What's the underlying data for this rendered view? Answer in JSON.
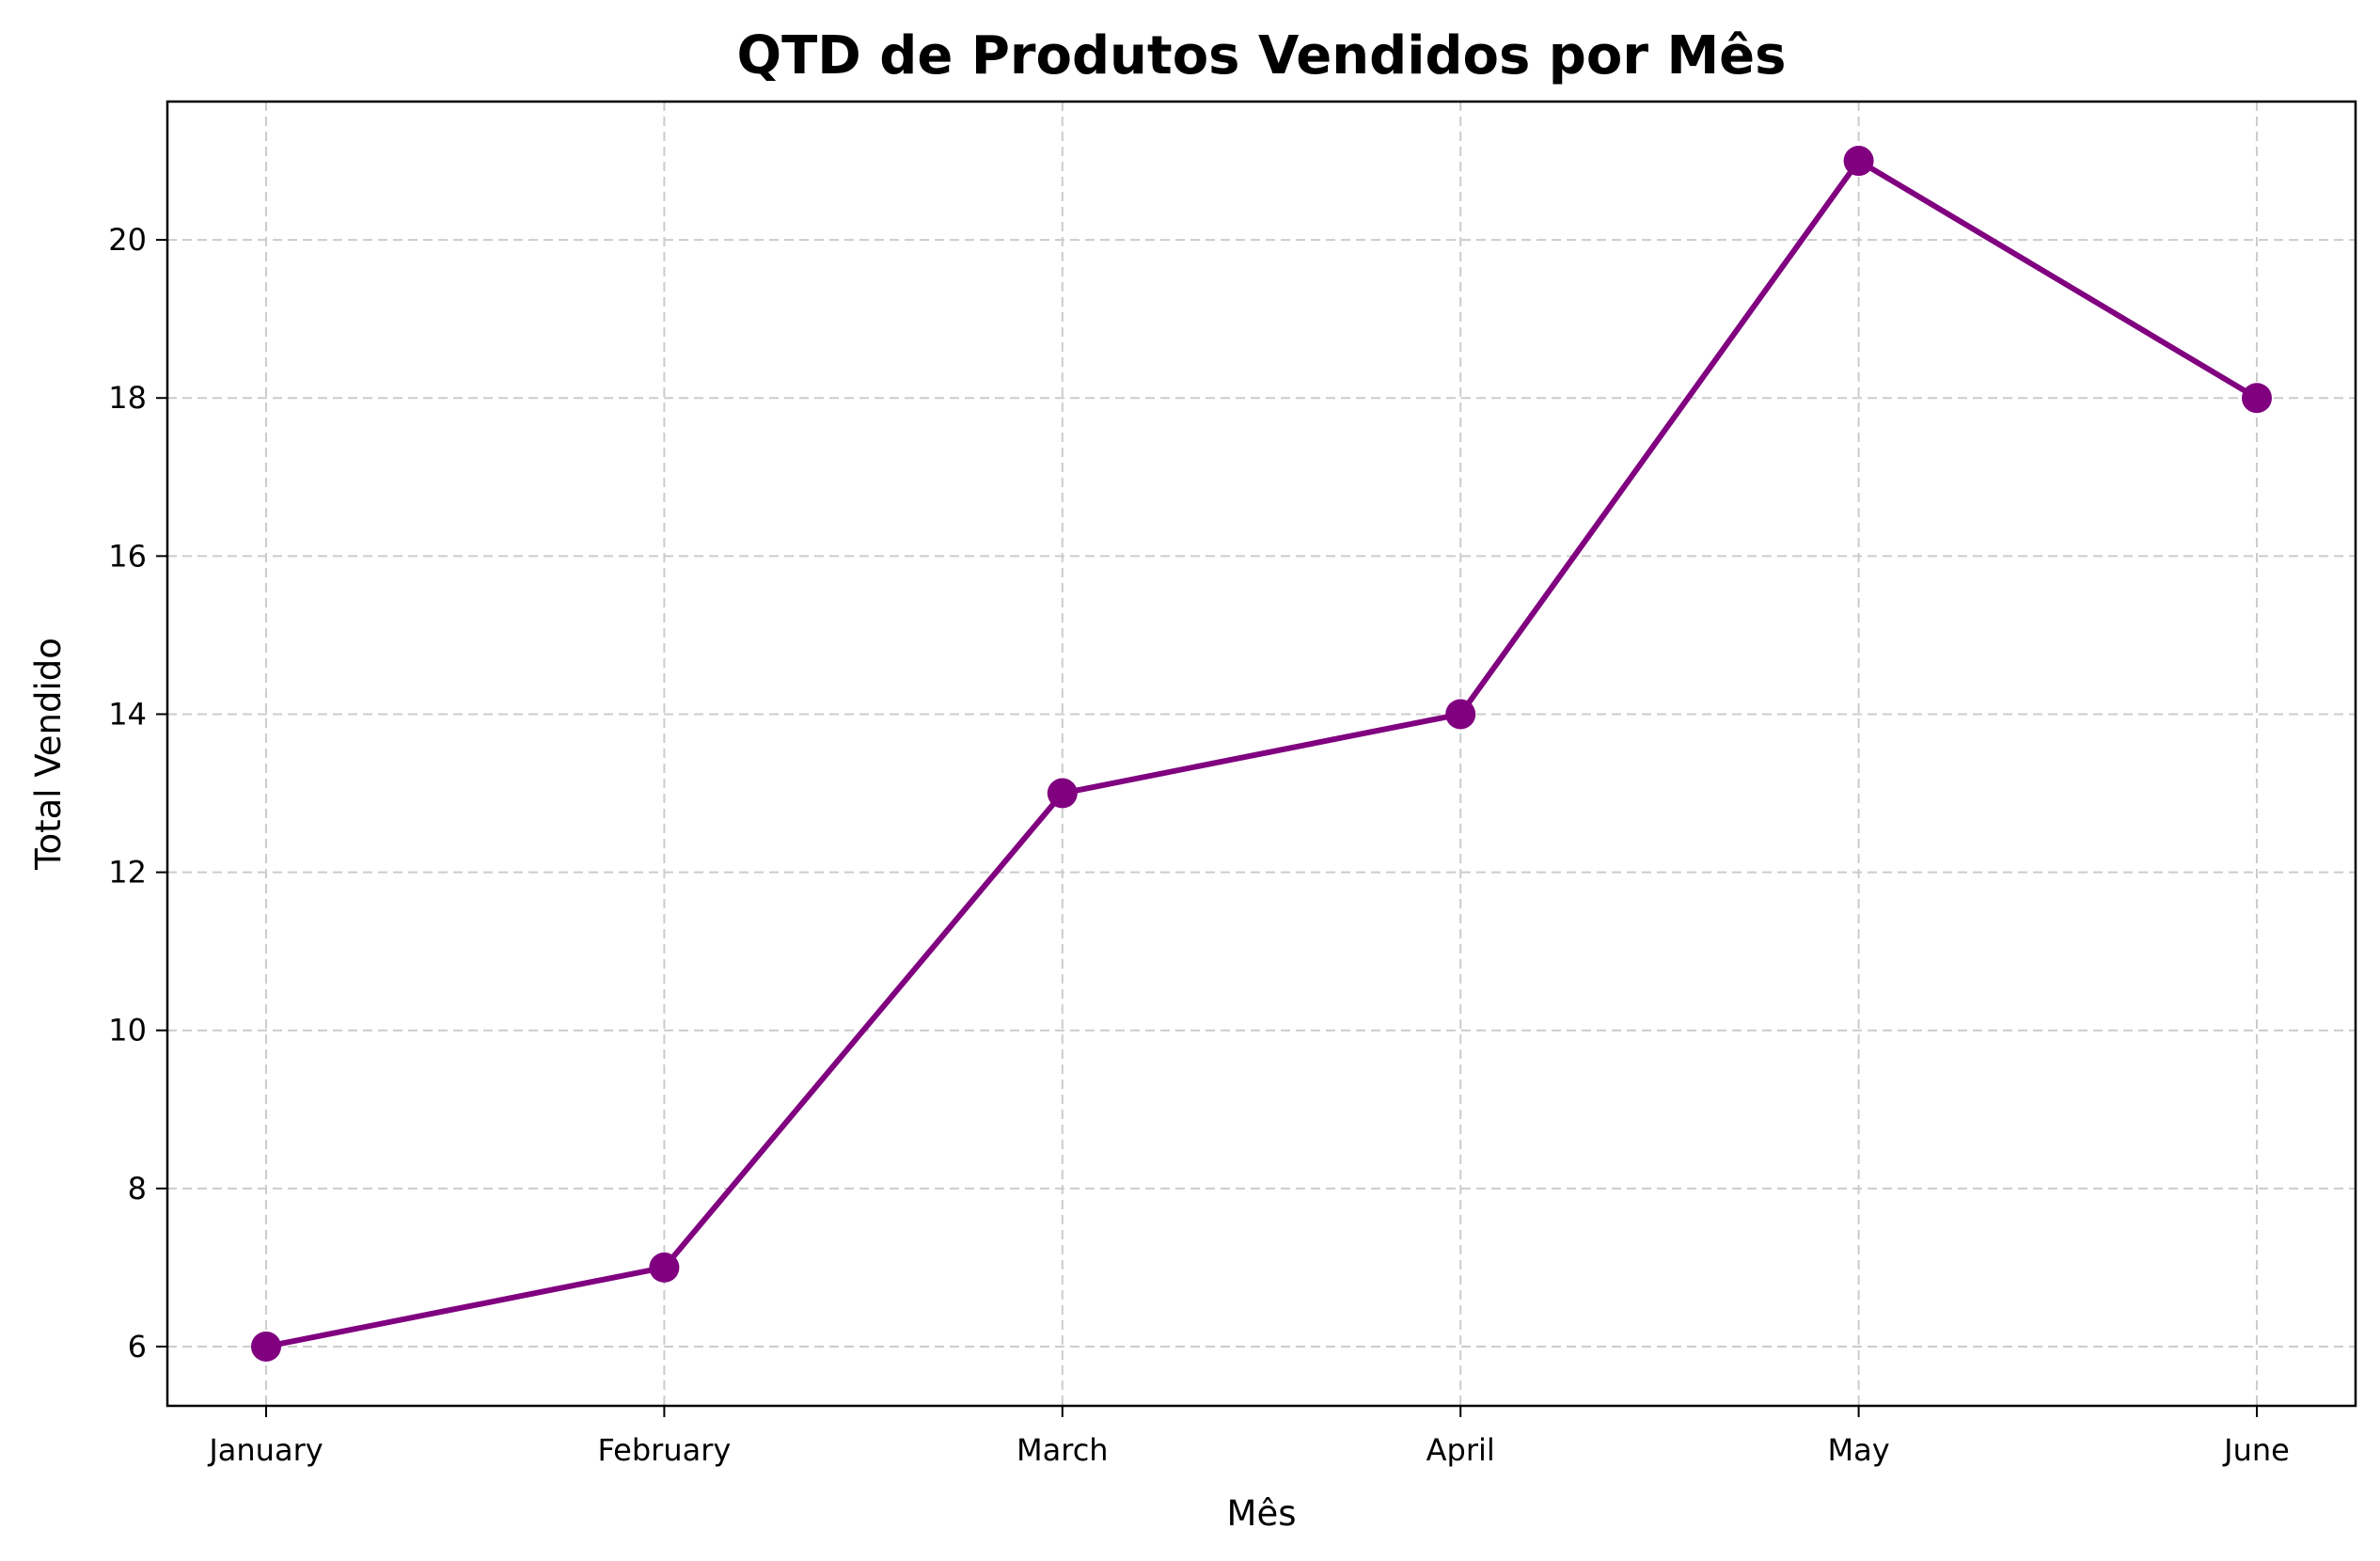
{
  "chart_data": {
    "type": "line",
    "title": "QTD de Produtos Vendidos por Mês",
    "xlabel": "Mês",
    "ylabel": "Total Vendido",
    "categories": [
      "January",
      "February",
      "March",
      "April",
      "May",
      "June"
    ],
    "series": [
      {
        "values": [
          6,
          7,
          13,
          14,
          21,
          18
        ]
      }
    ],
    "ylim": [
      5.25,
      21.75
    ],
    "yticks": [
      6,
      8,
      10,
      12,
      14,
      16,
      18,
      20
    ],
    "grid": true,
    "line_style": "dashed-grid",
    "color": "#800080"
  }
}
